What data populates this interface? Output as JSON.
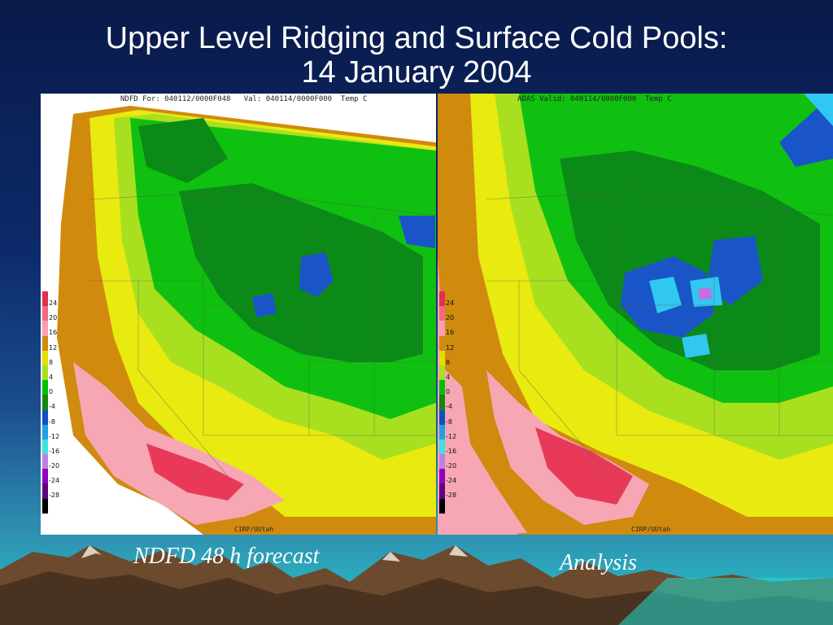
{
  "slide": {
    "title_line1": "Upper Level Ridging and Surface Cold Pools:",
    "title_line2": "14 January 2004"
  },
  "left_map": {
    "header": "NDFD For: 040112/0000F048   Val: 040114/0000F000  Temp C",
    "credit": "CIRP/UUtah",
    "caption": "NDFD 48 h forecast"
  },
  "right_map": {
    "header": "ADAS Valid: 040114/0000F000  Temp C",
    "credit": "CIRP/UUtah",
    "caption": "Analysis"
  },
  "legend": {
    "labels": [
      "24",
      "20",
      "16",
      "12",
      "8",
      "4",
      "0",
      "-4",
      "-8",
      "-12",
      "-16",
      "-20",
      "-24",
      "-28"
    ],
    "colors": [
      "#e03050",
      "#f06a7a",
      "#f8a0b0",
      "#d08a10",
      "#e0e000",
      "#a8e020",
      "#00c000",
      "#108a10",
      "#1050c0",
      "#20a0e0",
      "#40e0e0",
      "#c080e0",
      "#9000c0",
      "#600080",
      "#000000"
    ]
  },
  "palette": {
    "hot": "#e83a58",
    "pink": "#f7a6b4",
    "orange": "#d08a0e",
    "yellow": "#e8ea10",
    "lightgreen": "#a8e020",
    "green": "#10c010",
    "darkgreen": "#0c8a18",
    "blue": "#1a55c8",
    "cyan": "#30c8f0",
    "violet": "#c070e0"
  }
}
